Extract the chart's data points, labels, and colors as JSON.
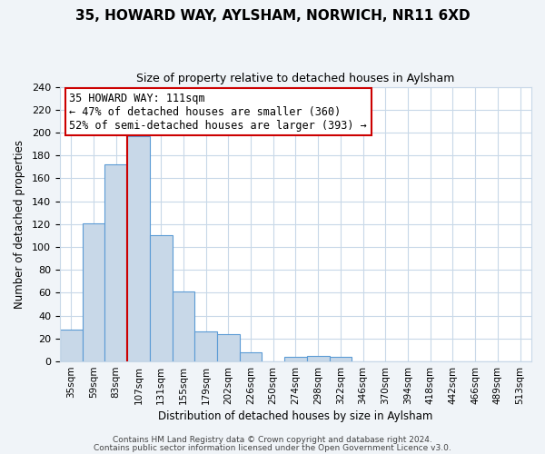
{
  "title": "35, HOWARD WAY, AYLSHAM, NORWICH, NR11 6XD",
  "subtitle": "Size of property relative to detached houses in Aylsham",
  "xlabel": "Distribution of detached houses by size in Aylsham",
  "ylabel": "Number of detached properties",
  "bar_color": "#c8d8e8",
  "bar_edge_color": "#5b9bd5",
  "bin_labels": [
    "35sqm",
    "59sqm",
    "83sqm",
    "107sqm",
    "131sqm",
    "155sqm",
    "179sqm",
    "202sqm",
    "226sqm",
    "250sqm",
    "274sqm",
    "298sqm",
    "322sqm",
    "346sqm",
    "370sqm",
    "394sqm",
    "418sqm",
    "442sqm",
    "466sqm",
    "489sqm",
    "513sqm"
  ],
  "bar_heights": [
    28,
    121,
    172,
    197,
    110,
    61,
    26,
    24,
    8,
    0,
    4,
    5,
    4,
    0,
    0,
    0,
    0,
    0,
    0,
    0,
    0
  ],
  "vline_x_index": 3,
  "vline_color": "#cc0000",
  "ylim": [
    0,
    240
  ],
  "yticks": [
    0,
    20,
    40,
    60,
    80,
    100,
    120,
    140,
    160,
    180,
    200,
    220,
    240
  ],
  "annotation_title": "35 HOWARD WAY: 111sqm",
  "annotation_line1": "← 47% of detached houses are smaller (360)",
  "annotation_line2": "52% of semi-detached houses are larger (393) →",
  "footer1": "Contains HM Land Registry data © Crown copyright and database right 2024.",
  "footer2": "Contains public sector information licensed under the Open Government Licence v3.0.",
  "background_color": "#f0f4f8",
  "plot_bg_color": "#ffffff",
  "grid_color": "#c8d8e8",
  "title_fontsize": 11,
  "subtitle_fontsize": 9,
  "axis_label_fontsize": 8.5,
  "tick_fontsize": 8,
  "xtick_fontsize": 7.5,
  "annot_fontsize": 8.5,
  "footer_fontsize": 6.5
}
